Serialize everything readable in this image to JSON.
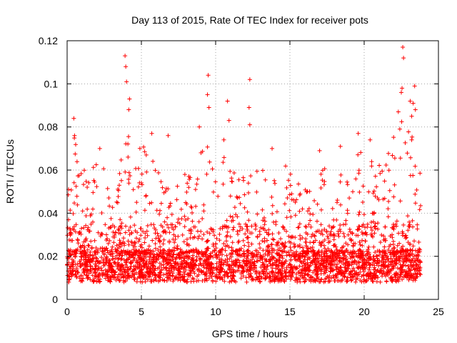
{
  "chart_data": {
    "type": "scatter",
    "title": "Day 113 of 2015, Rate Of TEC Index for receiver pots",
    "xlabel": "GPS time / hours",
    "ylabel": "ROTI / TECUs",
    "xlim": [
      0,
      25
    ],
    "ylim": [
      0,
      0.12
    ],
    "xticks": [
      0,
      5,
      10,
      15,
      20,
      25
    ],
    "xtick_labels": [
      "0",
      "5",
      "10",
      "15",
      "20",
      "25"
    ],
    "yticks": [
      0,
      0.02,
      0.04,
      0.06,
      0.08,
      0.1,
      0.12
    ],
    "ytick_labels": [
      "0",
      "0.02",
      "0.04",
      "0.06",
      "0.08",
      "0.1",
      "0.12"
    ],
    "grid": true,
    "marker": "+",
    "color": "#ff0000",
    "series": [
      {
        "name": "ROTI",
        "x_range": [
          0.0,
          23.8
        ],
        "typical_range": [
          0.005,
          0.04
        ],
        "envelope": [
          {
            "x": 0.0,
            "upper": 0.045
          },
          {
            "x": 0.5,
            "upper": 0.077
          },
          {
            "x": 1.0,
            "upper": 0.062
          },
          {
            "x": 1.5,
            "upper": 0.056
          },
          {
            "x": 2.2,
            "upper": 0.07
          },
          {
            "x": 3.0,
            "upper": 0.045
          },
          {
            "x": 3.5,
            "upper": 0.06
          },
          {
            "x": 4.0,
            "upper": 0.087
          },
          {
            "x": 4.6,
            "upper": 0.07
          },
          {
            "x": 5.5,
            "upper": 0.075
          },
          {
            "x": 6.5,
            "upper": 0.06
          },
          {
            "x": 7.5,
            "upper": 0.055
          },
          {
            "x": 8.5,
            "upper": 0.065
          },
          {
            "x": 9.5,
            "upper": 0.08
          },
          {
            "x": 10.5,
            "upper": 0.075
          },
          {
            "x": 11.5,
            "upper": 0.06
          },
          {
            "x": 12.3,
            "upper": 0.065
          },
          {
            "x": 13.5,
            "upper": 0.06
          },
          {
            "x": 14.5,
            "upper": 0.065
          },
          {
            "x": 15.5,
            "upper": 0.055
          },
          {
            "x": 16.5,
            "upper": 0.05
          },
          {
            "x": 17.5,
            "upper": 0.065
          },
          {
            "x": 18.5,
            "upper": 0.06
          },
          {
            "x": 19.5,
            "upper": 0.07
          },
          {
            "x": 20.5,
            "upper": 0.065
          },
          {
            "x": 21.5,
            "upper": 0.065
          },
          {
            "x": 22.5,
            "upper": 0.09
          },
          {
            "x": 23.5,
            "upper": 0.07
          },
          {
            "x": 23.8,
            "upper": 0.06
          }
        ],
        "peaks": [
          {
            "x": 0.1,
            "y": 0.051
          },
          {
            "x": 0.45,
            "y": 0.084
          },
          {
            "x": 0.5,
            "y": 0.076
          },
          {
            "x": 2.2,
            "y": 0.07
          },
          {
            "x": 3.9,
            "y": 0.113
          },
          {
            "x": 3.95,
            "y": 0.108
          },
          {
            "x": 4.0,
            "y": 0.101
          },
          {
            "x": 4.2,
            "y": 0.093
          },
          {
            "x": 4.15,
            "y": 0.088
          },
          {
            "x": 5.7,
            "y": 0.077
          },
          {
            "x": 6.8,
            "y": 0.076
          },
          {
            "x": 8.9,
            "y": 0.08
          },
          {
            "x": 9.5,
            "y": 0.104
          },
          {
            "x": 9.45,
            "y": 0.095
          },
          {
            "x": 9.55,
            "y": 0.089
          },
          {
            "x": 10.8,
            "y": 0.092
          },
          {
            "x": 10.9,
            "y": 0.083
          },
          {
            "x": 12.3,
            "y": 0.102
          },
          {
            "x": 12.25,
            "y": 0.089
          },
          {
            "x": 12.3,
            "y": 0.081
          },
          {
            "x": 13.8,
            "y": 0.07
          },
          {
            "x": 17.0,
            "y": 0.069
          },
          {
            "x": 18.4,
            "y": 0.071
          },
          {
            "x": 19.6,
            "y": 0.077
          },
          {
            "x": 20.4,
            "y": 0.074
          },
          {
            "x": 22.3,
            "y": 0.087
          },
          {
            "x": 22.6,
            "y": 0.117
          },
          {
            "x": 22.65,
            "y": 0.112
          },
          {
            "x": 22.55,
            "y": 0.098
          },
          {
            "x": 22.5,
            "y": 0.096
          },
          {
            "x": 22.4,
            "y": 0.079
          },
          {
            "x": 23.1,
            "y": 0.092
          },
          {
            "x": 23.4,
            "y": 0.099
          },
          {
            "x": 23.45,
            "y": 0.088
          },
          {
            "x": 23.2,
            "y": 0.085
          },
          {
            "x": 23.3,
            "y": 0.091
          },
          {
            "x": 23.2,
            "y": 0.074
          }
        ]
      }
    ]
  }
}
